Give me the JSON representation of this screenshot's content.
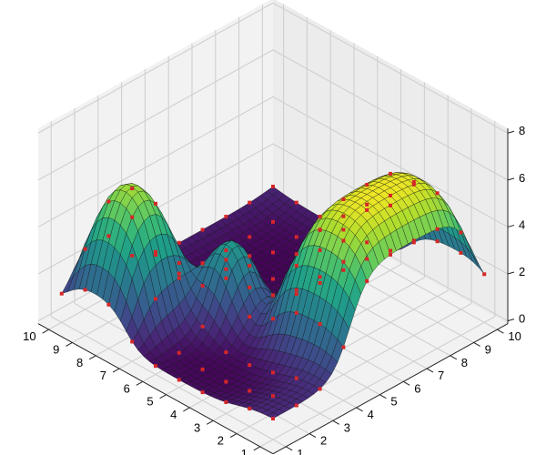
{
  "chart_data": {
    "type": "surface3d",
    "title": "",
    "xlabel": "",
    "ylabel": "",
    "zlabel": "",
    "colormap": "viridis",
    "view": "isometric, azimuth -45°, elevation ~30°",
    "x_ticks": [
      "1",
      "2",
      "3",
      "4",
      "5",
      "6",
      "7",
      "8",
      "9",
      "10"
    ],
    "y_ticks": [
      "1",
      "2",
      "3",
      "4",
      "5",
      "6",
      "7",
      "8",
      "9",
      "10"
    ],
    "z_ticks": [
      "0",
      "2",
      "4",
      "6",
      "8"
    ],
    "xlim": [
      1,
      10
    ],
    "ylim": [
      1,
      10
    ],
    "zlim": [
      0,
      8
    ],
    "grid": true,
    "markers": {
      "color": "#d62728",
      "shape": "square",
      "description": "red markers at integer grid points (10x10 data points)"
    },
    "features": [
      {
        "name": "left peak",
        "center_x": 8.5,
        "center_y": 2.5,
        "height": 6.3,
        "shape": "narrow flat-topped peak"
      },
      {
        "name": "right plateau",
        "x_range": [
          1,
          4
        ],
        "y_range": [
          4,
          9
        ],
        "height": 6.5,
        "shape": "broad flat-topped plateau"
      },
      {
        "name": "central bump",
        "center_x": 6,
        "center_y": 4.5,
        "height": 3.5,
        "shape": "rounded dome"
      }
    ],
    "baseline_z": 0.8,
    "floor_z": 0
  },
  "axes": {
    "left_axis_ticks": [
      "10",
      "9",
      "8",
      "7",
      "6",
      "5",
      "4",
      "3",
      "2",
      "1"
    ],
    "right_axis_ticks": [
      "1",
      "2",
      "3",
      "4",
      "5",
      "6",
      "7",
      "8",
      "9",
      "10"
    ],
    "z_axis_ticks": [
      "8",
      "6",
      "4",
      "2",
      "0"
    ]
  }
}
